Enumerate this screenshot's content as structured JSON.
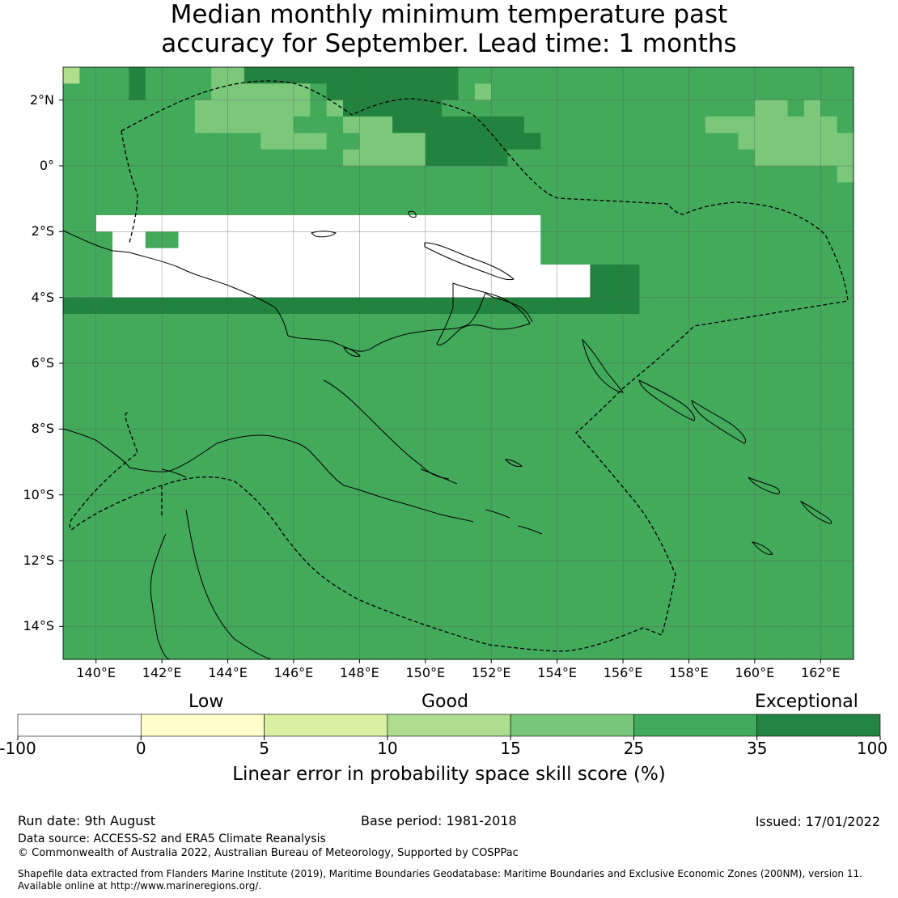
{
  "title": {
    "line1": "Median monthly minimum temperature past",
    "line2": "accuracy for September. Lead time: 1 months"
  },
  "map": {
    "lon_range": [
      139,
      163
    ],
    "lat_range": [
      -15,
      3
    ],
    "lon_ticks": [
      "140°E",
      "142°E",
      "144°E",
      "146°E",
      "148°E",
      "150°E",
      "152°E",
      "154°E",
      "156°E",
      "158°E",
      "160°E",
      "162°E"
    ],
    "lat_ticks": [
      "2°N",
      "0°",
      "2°S",
      "4°S",
      "6°S",
      "8°S",
      "10°S",
      "12°S",
      "14°S"
    ],
    "skill_grid": [
      "FBBBDBBBBCCDDDDDDDDDDDDDBBBBBBBBBBBBBBBBBBBBBBBB",
      "BBBBDBBBBCCCCCCBDDDDDDDDBCBBBBBBBBBBBBBBBBBBBBBB",
      "BBBBBBAACCCCCCCBCDDDDDDBBBBBBBBBBBBBBBBBBBCCBCBB",
      "BBBBBBAACCCCCCBBBCCCDDDDDDDDBBBBBBBBBBBCCCCCCCCB",
      "BBBBBBAABBAACCCCBBCCCCDDDDDDDBBBBBBBBBBBBCCCCCCC",
      "BBBAAAAABBBBBBBBBCCCCCDDDDDBBBBBBBBBBBAABBCCCCCC",
      "BBEEEEEEEEBBBBBBBBBBBBBBBBBBBBBBBBBBBBEEEEEEEEEC",
      "BBEEEEEEEEBBBBBBBBBBBBBBBBBBBBBBBBBBBBEEEEEEEEEB",
      "EEEEEEEEEEEEEEEEEEEEEEEEEEEEEEEEEEEEEEEEEEEEEEEB",
      "EEGGGGGGGGGGGGGGGGGGGGGGGGGGGEEEEEEEEEEEEEEEEEEB",
      "EEEGGEEGGGGGGGGGGGGGGGGGGGGGGEEEEEEEBBBBBBBBBBBB",
      "EEEGGGGGGGGGGGGGGGGGGGGGGGGGGEEEEEEBBBBBBBBBBBBB",
      "EEEGGGGGGGGGGGGGGGGGGGGGGGGGGGGGDDDBBBBBBBBBBBBB",
      "EEEGGGGGGGGGGGGGGGGGGGGGGGGGGGGGDDDBBBBBBBBBBBBB",
      "DDDDDDDDDDDDDDDDDDDDDDDDDDDDDDDDDDDBBBBBBBBBBBBB",
      "BBBBBBBBBBBBBBBBBBBBBBBBBBBBBBBBBBBBBBBBBBBBBBBB",
      "BBBBBBBBBBBBBBBBBBBBBBBBBBBBBBBBBBBBBBBBBBBBBBBB",
      "BBBBBBBBBBBBBBBBBBBBBBBBBBBBBBBBBBBBBBBBBBBBBBBB",
      "BBBBBBBBBBBBBBBBBBBBBBBBBBBBBBBBBBBBBBBBBBBBBBBB",
      "BBBBBBBBBBBBBBBBBBBBBBBBBBBBBBBBBBBBBBBBBBBBBBBB",
      "BBBBBBBBBBBBBBBBBBBBBBBBBBBBBBBBBBBBBBBBBBBBBBBB",
      "BBBBBBBBBBBBBBBBBBBBBBBBBBBBBBBBBBBBBBBBBBBBBBBB",
      "BBBBBBBBBBBBBBBBBBBBBBBBBBBBBBBBBBBBBBBBBBBBBBBB",
      "BBBBBBBBBBBBBBBBBBBBBBBBBBBBBBBBBBBBBBBBBBBBBBBB",
      "BBBBBBBBBBBBBBBBBBBBBBBBBBBBBBBBBBBBBBBBBBBBBBBB",
      "BBBBBBBBBBBBBBBBBBBBBBBBBBBBBBBBBBBBBBBBBBBBBBBB",
      "BBBBBBBBBBBBBBBBBBBBBBBBBBBBBBBBBBBBBBBBBBBBBBBB",
      "BBBBBBBBBBBBBBBBBBBBBBBBBBBBBBBBBBBBBBBBBBBBBBBB",
      "BBBBBBBBBBBBBBBBBBBBBBBBBBBBBBBBBBBBBBBBBBBBBBBB",
      "BBBBBBBBBBBBBBBBBBBBBBBBBBBBBBBBBBBBBBBBBBBBBBBB",
      "BBBBBBBBBBBBBBBBBBBBBBBBBBBBBBBBBBBBBBBBBBBBBBBB",
      "BBBBBBBBBBBBBBBBBBBBBBBBBBBBBBBBBBBBBBBBBBBBBBBB",
      "BBBBBBBBBBBBBBBBBBBBBBBBBBBBBBBBBBBBBBBBBBBBBBBB",
      "BBBBBBBBBBBBBBBBBBBBBBBBBBBBBBBBBBBBBBBBBBBBBBBB",
      "BBBBBBBBBBBBBBBBBBBBBBBBBBBBBBBBBBBBBBBBBBBBBBBB",
      "BBBBBBBBBBBBBBBBBBBBBBBBBBBBBBBBBBBBBBBBBBBBBBBB"
    ],
    "skill_colors": {
      "A": "#43a95b",
      "B": "#43a95b",
      "C": "#7bc87b",
      "D": "#22833f",
      "E": "#43a95b",
      "F": "#b1de8d",
      "G": "#ffffff"
    }
  },
  "colorbar": {
    "categories": [
      "Low",
      "Good",
      "Exceptional"
    ],
    "ticks": [
      "-100",
      "0",
      "5",
      "10",
      "15",
      "25",
      "35",
      "100"
    ],
    "colors": [
      "#ffffff",
      "#ffffcc",
      "#d9f0a3",
      "#addd8e",
      "#78c679",
      "#41ab5d",
      "#238443"
    ],
    "label": "Linear error in probability space skill score (%)"
  },
  "footer": {
    "run_date": "Run date: 9th August",
    "base_period": "Base period: 1981-2018",
    "issued": "Issued: 17/01/2022",
    "data_source": "Data source: ACCESS-S2 and ERA5 Climate Reanalysis",
    "copyright": "© Commonwealth of Australia 2022, Australian Bureau of Meteorology, Supported by COSPPac",
    "shapefile_line1": "Shapefile data extracted from Flanders Marine Institute (2019), Maritime Boundaries Geodatabase: Maritime Boundaries and Exclusive Economic Zones (200NM), version 11.",
    "shapefile_line2": "Available online at http://www.marineregions.org/."
  }
}
